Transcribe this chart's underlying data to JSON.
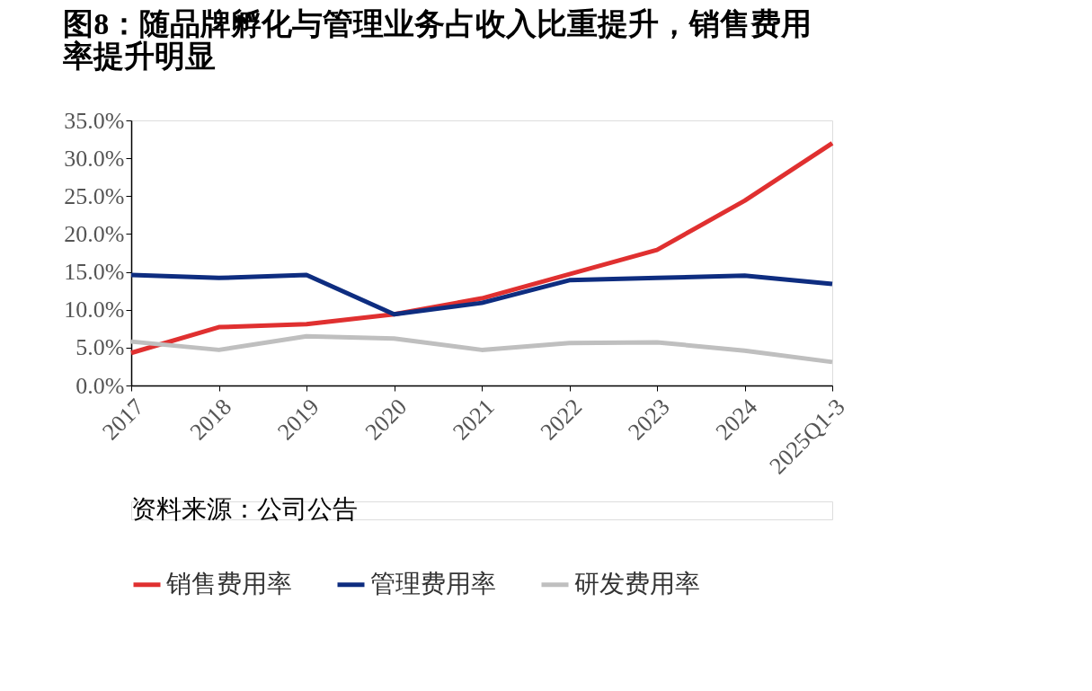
{
  "chart_data": {
    "type": "line",
    "title": "图8：随品牌孵化与管理业务占收入比重提升，销售费用率提升明显",
    "categories": [
      "2017",
      "2018",
      "2019",
      "2020",
      "2021",
      "2022",
      "2023",
      "2024",
      "2025Q1-3"
    ],
    "series": [
      {
        "name": "销售费用率",
        "color": "#e03030",
        "values": [
          4.3,
          7.7,
          8.1,
          9.4,
          11.5,
          14.7,
          17.9,
          24.4,
          32.0
        ]
      },
      {
        "name": "管理费用率",
        "color": "#0e2d80",
        "values": [
          14.6,
          14.2,
          14.6,
          9.4,
          10.9,
          13.9,
          14.2,
          14.5,
          13.4
        ]
      },
      {
        "name": "研发费用率",
        "color": "#bfbfbf",
        "values": [
          5.8,
          4.7,
          6.5,
          6.2,
          4.7,
          5.6,
          5.7,
          4.6,
          3.1
        ]
      }
    ],
    "ylim": [
      0,
      35
    ],
    "yticks": [
      {
        "value": 0,
        "label": "0.0%"
      },
      {
        "value": 5,
        "label": "5.0%"
      },
      {
        "value": 10,
        "label": "10.0%"
      },
      {
        "value": 15,
        "label": "15.0%"
      },
      {
        "value": 20,
        "label": "20.0%"
      },
      {
        "value": 25,
        "label": "25.0%"
      },
      {
        "value": 30,
        "label": "30.0%"
      },
      {
        "value": 35,
        "label": "35.0%"
      }
    ],
    "grid": false,
    "legend": "bottom",
    "marker": "none",
    "line_style": "solid",
    "annotations": [
      "资料来源：公司公告"
    ]
  }
}
